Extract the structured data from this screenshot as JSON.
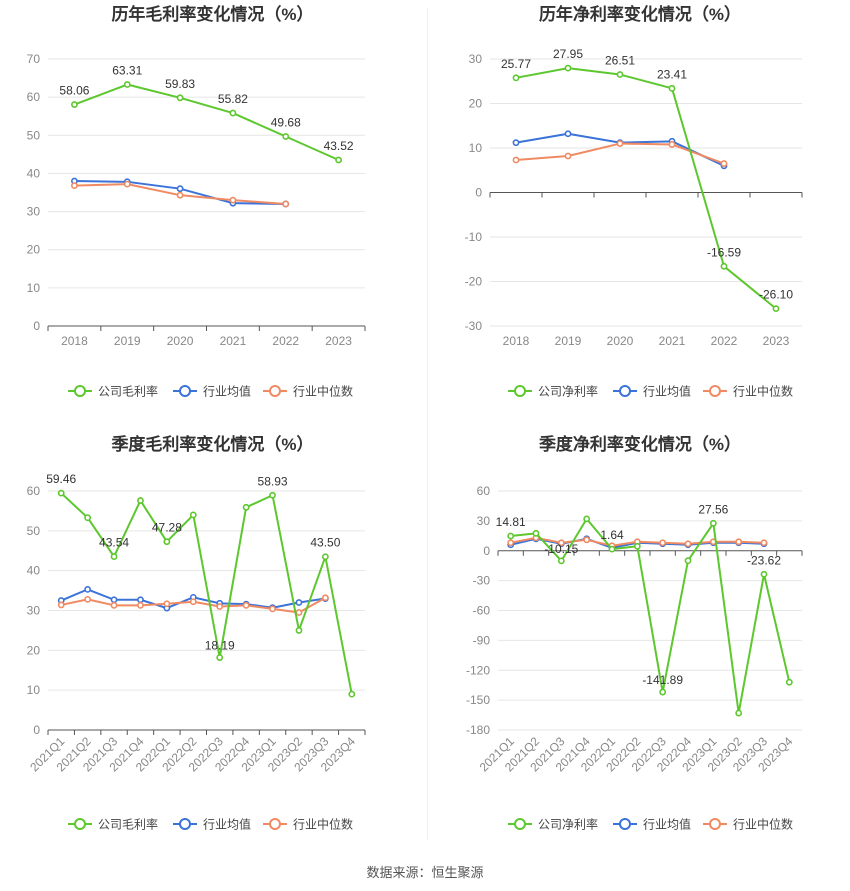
{
  "source_label": "数据来源：恒生聚源",
  "colors": {
    "company": "#5dc72e",
    "industry_avg": "#3b73d9",
    "industry_median": "#ef8a62"
  },
  "legend_labels": {
    "company_gross": "公司毛利率",
    "company_net": "公司净利率",
    "industry_avg": "行业均值",
    "industry_median": "行业中位数"
  },
  "chart_data": [
    {
      "type": "line",
      "title": "历年毛利率变化情况（%）",
      "categories": [
        "2018",
        "2019",
        "2020",
        "2021",
        "2022",
        "2023"
      ],
      "ylim": [
        0,
        70
      ],
      "yticks": [
        0,
        10,
        20,
        30,
        40,
        50,
        60,
        70
      ],
      "grid": true,
      "legend": "bottom",
      "series": [
        {
          "name": "公司毛利率",
          "color": "#5dc72e",
          "values": [
            58.06,
            63.31,
            59.83,
            55.82,
            49.68,
            43.52
          ],
          "labels": [
            "58.06",
            "63.31",
            "59.83",
            "55.82",
            "49.68",
            "43.52"
          ]
        },
        {
          "name": "行业均值",
          "color": "#3b73d9",
          "values": [
            38.0,
            37.8,
            36.0,
            32.2,
            32.0,
            null
          ]
        },
        {
          "name": "行业中位数",
          "color": "#ef8a62",
          "values": [
            36.8,
            37.2,
            34.3,
            33.0,
            32.0,
            null
          ]
        }
      ]
    },
    {
      "type": "line",
      "title": "历年净利率变化情况（%）",
      "categories": [
        "2018",
        "2019",
        "2020",
        "2021",
        "2022",
        "2023"
      ],
      "ylim": [
        -30,
        30
      ],
      "yticks": [
        -30,
        -20,
        -10,
        0,
        10,
        20,
        30
      ],
      "grid": true,
      "legend": "bottom",
      "series": [
        {
          "name": "公司净利率",
          "color": "#5dc72e",
          "values": [
            25.77,
            27.95,
            26.51,
            23.41,
            -16.59,
            -26.1
          ],
          "labels": [
            "25.77",
            "27.95",
            "26.51",
            "23.41",
            "-16.59",
            "-26.10"
          ]
        },
        {
          "name": "行业均值",
          "color": "#3b73d9",
          "values": [
            11.2,
            13.2,
            11.2,
            11.5,
            6.0,
            null
          ]
        },
        {
          "name": "行业中位数",
          "color": "#ef8a62",
          "values": [
            7.3,
            8.2,
            11.0,
            10.8,
            6.5,
            null
          ]
        }
      ]
    },
    {
      "type": "line",
      "title": "季度毛利率变化情况（%）",
      "categories": [
        "2021Q1",
        "2021Q2",
        "2021Q3",
        "2021Q4",
        "2022Q1",
        "2022Q2",
        "2022Q3",
        "2022Q4",
        "2023Q1",
        "2023Q2",
        "2023Q3",
        "2023Q4"
      ],
      "ylim": [
        0,
        60
      ],
      "yticks": [
        0,
        10,
        20,
        30,
        40,
        50,
        60
      ],
      "grid": true,
      "legend": "bottom",
      "series": [
        {
          "name": "公司毛利率",
          "color": "#5dc72e",
          "values": [
            59.46,
            53.3,
            43.54,
            57.6,
            47.28,
            54.0,
            18.19,
            55.9,
            58.93,
            25.0,
            43.5,
            9.0
          ],
          "labels": [
            "59.46",
            null,
            "43.54",
            null,
            "47.28",
            null,
            "18.19",
            null,
            "58.93",
            null,
            "43.50",
            null
          ]
        },
        {
          "name": "行业均值",
          "color": "#3b73d9",
          "values": [
            32.5,
            35.3,
            32.7,
            32.7,
            30.6,
            33.3,
            31.8,
            31.6,
            30.7,
            32.0,
            33.0,
            null
          ]
        },
        {
          "name": "行业中位数",
          "color": "#ef8a62",
          "values": [
            31.4,
            32.8,
            31.3,
            31.3,
            31.7,
            32.2,
            31.0,
            31.3,
            30.4,
            29.5,
            33.2,
            null
          ]
        }
      ]
    },
    {
      "type": "line",
      "title": "季度净利率变化情况（%）",
      "categories": [
        "2021Q1",
        "2021Q2",
        "2021Q3",
        "2021Q4",
        "2022Q1",
        "2022Q2",
        "2022Q3",
        "2022Q4",
        "2023Q1",
        "2023Q2",
        "2023Q3",
        "2023Q4"
      ],
      "ylim": [
        -180,
        60
      ],
      "yticks": [
        -180,
        -150,
        -120,
        -90,
        -60,
        -30,
        0,
        30,
        60
      ],
      "grid": true,
      "legend": "bottom",
      "series": [
        {
          "name": "公司净利率",
          "color": "#5dc72e",
          "values": [
            14.81,
            17.5,
            -10.15,
            32.0,
            1.64,
            4.5,
            -141.89,
            -10.0,
            27.56,
            -163.0,
            -23.62,
            -132.0
          ],
          "labels": [
            "14.81",
            null,
            "-10.15",
            null,
            "1.64",
            null,
            "-141.89",
            null,
            "27.56",
            null,
            "-23.62",
            null
          ]
        },
        {
          "name": "行业均值",
          "color": "#3b73d9",
          "values": [
            6.0,
            12.0,
            7.0,
            12.0,
            3.0,
            8.0,
            7.0,
            6.0,
            8.0,
            8.0,
            7.0,
            null
          ]
        },
        {
          "name": "行业中位数",
          "color": "#ef8a62",
          "values": [
            8.0,
            13.0,
            8.0,
            11.0,
            5.0,
            9.0,
            8.0,
            7.0,
            9.0,
            9.0,
            8.0,
            null
          ]
        }
      ]
    }
  ]
}
